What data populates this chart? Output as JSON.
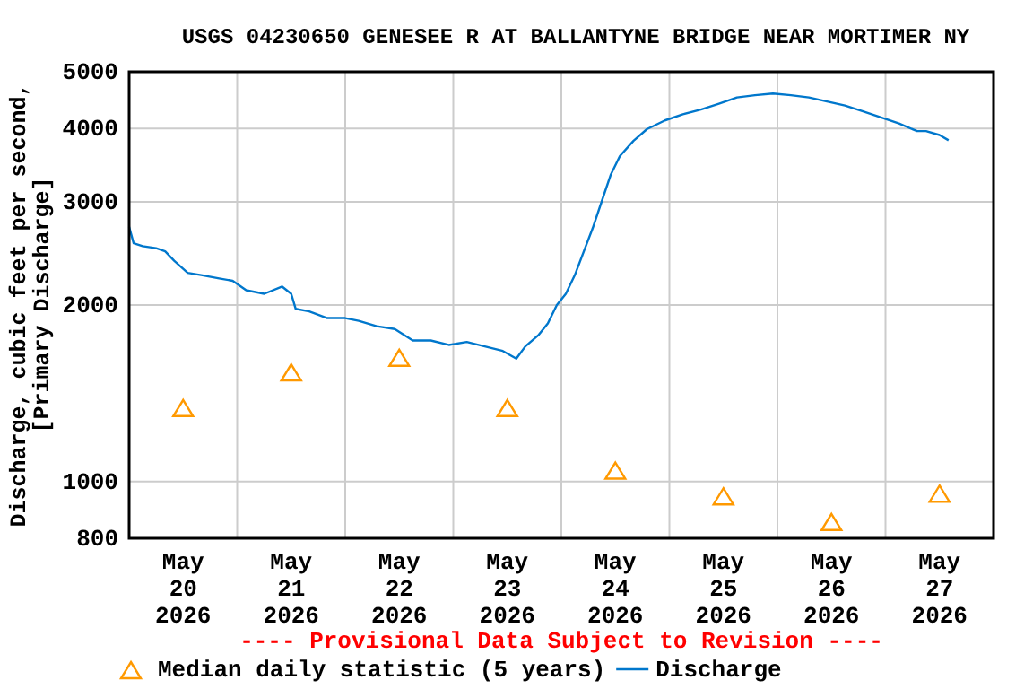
{
  "chart_data": {
    "type": "line",
    "title": "USGS 04230650 GENESEE R AT BALLANTYNE BRIDGE NEAR MORTIMER NY",
    "ylabel": "Discharge, cubic feet per second,\n[Primary Discharge]",
    "annotations": [
      "---- Provisional Data Subject to Revision ----"
    ],
    "log": "y",
    "grid": true,
    "legend": "bottom",
    "xlim": [
      "2026-05-20T00:00",
      "2026-05-28T00:00"
    ],
    "xticks": [
      {
        "value": "2026-05-20T12:00",
        "label": "May\n20\n2026"
      },
      {
        "value": "2026-05-21T12:00",
        "label": "May\n21\n2026"
      },
      {
        "value": "2026-05-22T12:00",
        "label": "May\n22\n2026"
      },
      {
        "value": "2026-05-23T12:00",
        "label": "May\n23\n2026"
      },
      {
        "value": "2026-05-24T12:00",
        "label": "May\n24\n2026"
      },
      {
        "value": "2026-05-25T12:00",
        "label": "May\n25\n2026"
      },
      {
        "value": "2026-05-26T12:00",
        "label": "May\n26\n2026"
      },
      {
        "value": "2026-05-27T12:00",
        "label": "May\n27\n2026"
      },
      {
        "value": "2026-05-21T00:00",
        "label": null
      },
      {
        "value": "2026-05-22T00:00",
        "label": null
      },
      {
        "value": "2026-05-23T00:00",
        "label": null
      },
      {
        "value": "2026-05-24T00:00",
        "label": null
      },
      {
        "value": "2026-05-25T00:00",
        "label": null
      },
      {
        "value": "2026-05-26T00:00",
        "label": null
      },
      {
        "value": "2026-05-27T00:00",
        "label": null
      }
    ],
    "ylim": [
      800,
      5000
    ],
    "yticks": [
      800,
      1000,
      2000,
      3000,
      4000,
      5000
    ],
    "series": [
      {
        "name": "Median daily statistic (5 years)",
        "type": "scatter",
        "marker": "triangle",
        "color": "#ff9900",
        "x": [
          "2026-05-20T12:00",
          "2026-05-21T12:00",
          "2026-05-22T12:00",
          "2026-05-23T12:00",
          "2026-05-24T12:00",
          "2026-05-25T12:00",
          "2026-05-26T12:00",
          "2026-05-27T12:00"
        ],
        "values": [
          1330,
          1530,
          1620,
          1330,
          1040,
          940,
          850,
          950
        ]
      },
      {
        "name": "Discharge",
        "marker": "none",
        "color": "#0077cc",
        "x": [
          "2026-05-20T00:00",
          "2026-05-20T01:00",
          "2026-05-20T03:00",
          "2026-05-20T06:00",
          "2026-05-20T08:00",
          "2026-05-20T10:00",
          "2026-05-20T13:00",
          "2026-05-20T16:00",
          "2026-05-20T20:00",
          "2026-05-20T23:00",
          "2026-05-21T02:00",
          "2026-05-21T06:00",
          "2026-05-21T10:00",
          "2026-05-21T12:00",
          "2026-05-21T13:00",
          "2026-05-21T16:00",
          "2026-05-21T20:00",
          "2026-05-22T00:00",
          "2026-05-22T03:00",
          "2026-05-22T07:00",
          "2026-05-22T11:00",
          "2026-05-22T15:00",
          "2026-05-22T19:00",
          "2026-05-22T23:00",
          "2026-05-23T03:00",
          "2026-05-23T07:00",
          "2026-05-23T11:00",
          "2026-05-23T14:00",
          "2026-05-23T16:00",
          "2026-05-23T19:00",
          "2026-05-23T21:00",
          "2026-05-23T23:00",
          "2026-05-24T01:00",
          "2026-05-24T03:00",
          "2026-05-24T05:00",
          "2026-05-24T07:00",
          "2026-05-24T09:00",
          "2026-05-24T11:00",
          "2026-05-24T13:00",
          "2026-05-24T16:00",
          "2026-05-24T19:00",
          "2026-05-24T23:00",
          "2026-05-25T03:00",
          "2026-05-25T07:00",
          "2026-05-25T11:00",
          "2026-05-25T15:00",
          "2026-05-25T19:00",
          "2026-05-25T23:00",
          "2026-05-26T03:00",
          "2026-05-26T07:00",
          "2026-05-26T11:00",
          "2026-05-26T15:00",
          "2026-05-26T19:00",
          "2026-05-26T23:00",
          "2026-05-27T03:00",
          "2026-05-27T07:00",
          "2026-05-27T09:00",
          "2026-05-27T12:00",
          "2026-05-27T14:00"
        ],
        "values": [
          2720,
          2550,
          2520,
          2500,
          2470,
          2380,
          2270,
          2250,
          2220,
          2200,
          2120,
          2090,
          2150,
          2090,
          1970,
          1950,
          1900,
          1900,
          1880,
          1840,
          1820,
          1740,
          1740,
          1710,
          1730,
          1700,
          1670,
          1620,
          1700,
          1780,
          1860,
          2000,
          2090,
          2250,
          2470,
          2710,
          3010,
          3340,
          3590,
          3810,
          3990,
          4130,
          4230,
          4310,
          4410,
          4520,
          4560,
          4590,
          4560,
          4520,
          4450,
          4380,
          4280,
          4180,
          4080,
          3960,
          3960,
          3900,
          3820
        ]
      }
    ]
  }
}
